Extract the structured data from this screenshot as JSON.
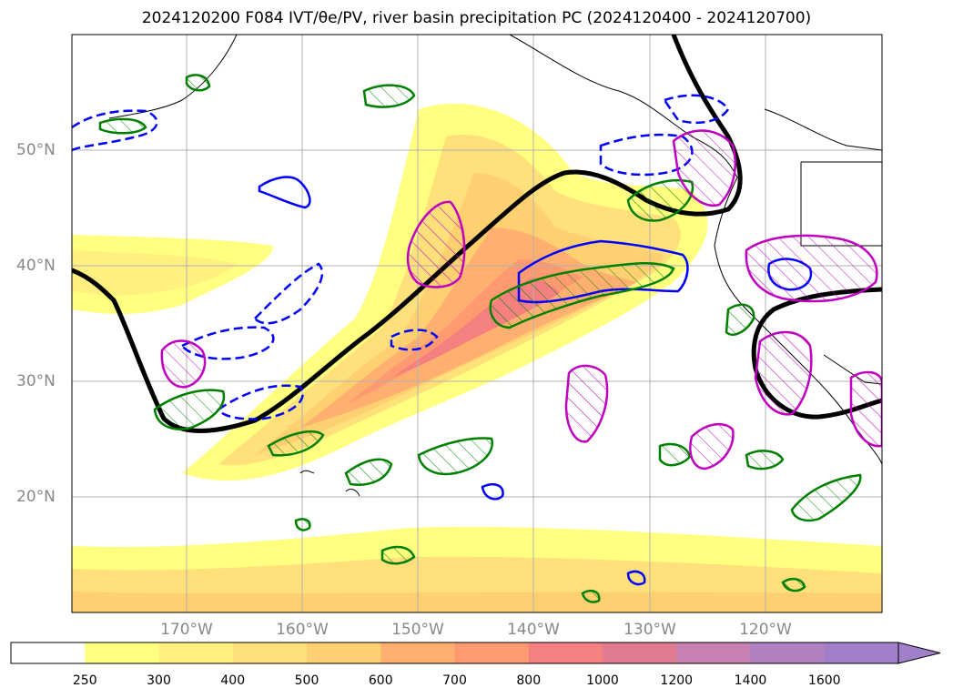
{
  "title": "2024120200 F084 IVT/θe/PV, river basin precipitation PC (2024120400 - 2024120700)",
  "map": {
    "lat_labels": [
      "50°N",
      "40°N",
      "30°N",
      "20°N"
    ],
    "lon_labels": [
      "170°W",
      "160°W",
      "150°W",
      "140°W",
      "130°W",
      "120°W"
    ],
    "extent": {
      "lon": [
        -180,
        -110
      ],
      "lat": [
        10,
        60
      ]
    }
  },
  "colorbar": {
    "ticks": [
      "250",
      "300",
      "400",
      "500",
      "600",
      "700",
      "800",
      "1000",
      "1200",
      "1400",
      "1600"
    ],
    "colors": [
      "#ffffff",
      "#ffff80",
      "#fff080",
      "#ffe07a",
      "#ffd070",
      "#ffb070",
      "#ff9a70",
      "#f58080",
      "#e07a90",
      "#c880b0",
      "#b080c0",
      "#a080c8"
    ]
  },
  "contour_colors": {
    "theta_e": "#000000",
    "pv_positive": "#0000ff",
    "precip_pc": "#008000",
    "basin": "#c000c0"
  }
}
